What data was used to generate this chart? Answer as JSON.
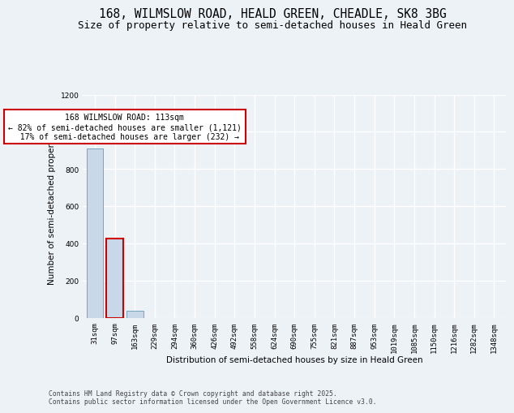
{
  "title_line1": "168, WILMSLOW ROAD, HEALD GREEN, CHEADLE, SK8 3BG",
  "title_line2": "Size of property relative to semi-detached houses in Heald Green",
  "xlabel": "Distribution of semi-detached houses by size in Heald Green",
  "ylabel": "Number of semi-detached properties",
  "categories": [
    "31sqm",
    "97sqm",
    "163sqm",
    "229sqm",
    "294sqm",
    "360sqm",
    "426sqm",
    "492sqm",
    "558sqm",
    "624sqm",
    "690sqm",
    "755sqm",
    "821sqm",
    "887sqm",
    "953sqm",
    "1019sqm",
    "1085sqm",
    "1150sqm",
    "1216sqm",
    "1282sqm",
    "1348sqm"
  ],
  "values": [
    910,
    425,
    35,
    0,
    0,
    0,
    0,
    0,
    0,
    0,
    0,
    0,
    0,
    0,
    0,
    0,
    0,
    0,
    0,
    0,
    0
  ],
  "bar_color_default": "#c8d8e8",
  "bar_edge_color": "#6699bb",
  "highlight_bar_index": 1,
  "highlight_bar_edge_color": "#cc0000",
  "annotation_text": "168 WILMSLOW ROAD: 113sqm\n← 82% of semi-detached houses are smaller (1,121)\n  17% of semi-detached houses are larger (232) →",
  "annotation_box_color": "#ffffff",
  "annotation_box_edge": "#cc0000",
  "ylim": [
    0,
    1200
  ],
  "yticks": [
    0,
    200,
    400,
    600,
    800,
    1000,
    1200
  ],
  "bg_color": "#edf2f7",
  "plot_bg_color": "#edf2f7",
  "grid_color": "#ffffff",
  "footer_text": "Contains HM Land Registry data © Crown copyright and database right 2025.\nContains public sector information licensed under the Open Government Licence v3.0.",
  "title_fontsize": 10.5,
  "subtitle_fontsize": 9,
  "tick_fontsize": 6.5,
  "ylabel_fontsize": 7.5,
  "xlabel_fontsize": 7.5,
  "ann_fontsize": 7.0
}
